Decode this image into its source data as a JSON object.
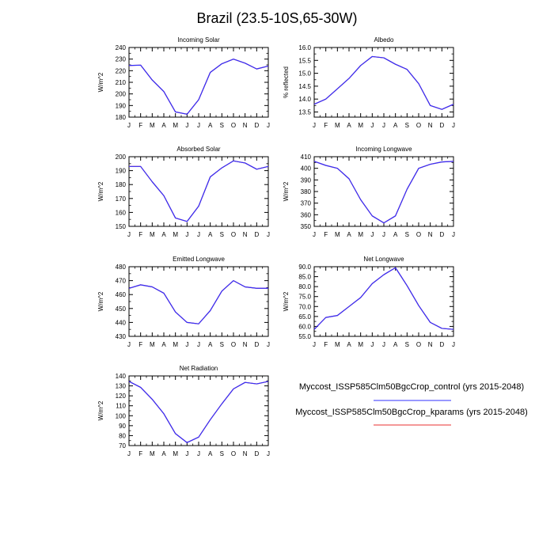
{
  "figure": {
    "title": "Brazil (23.5-10S,65-30W)"
  },
  "legend": {
    "entries": [
      {
        "name": "Myccost_ISSP585Clm50BgcCrop_control (yrs 2015-2048)",
        "color": "#3030ff"
      },
      {
        "name": "Myccost_ISSP585Clm50BgcCrop_kparams (yrs 2015-2048)",
        "color": "#e83030"
      }
    ]
  },
  "chart_data": [
    {
      "type": "line",
      "title": "Incoming Solar",
      "ylabel": "W/m^2",
      "categories": [
        "J",
        "F",
        "M",
        "A",
        "M",
        "J",
        "J",
        "A",
        "S",
        "O",
        "N",
        "D",
        "J"
      ],
      "ylim": [
        180,
        240
      ],
      "yticks": [
        180,
        190,
        200,
        210,
        220,
        230,
        240
      ],
      "ytick_labels": [
        "180",
        "190",
        "200",
        "210",
        "220",
        "230",
        "240"
      ],
      "series": [
        {
          "name": "control",
          "color": "#3030ff",
          "values": [
            224.5,
            224.8,
            212,
            202,
            184.5,
            182.5,
            195,
            218.5,
            226,
            230,
            226.5,
            221.5,
            224
          ]
        },
        {
          "name": "kparams",
          "color": "#e83030",
          "values": [
            224.5,
            224.8,
            212,
            202,
            184.5,
            182.5,
            195,
            218.5,
            226,
            230,
            226.5,
            221.5,
            224
          ]
        }
      ]
    },
    {
      "type": "line",
      "title": "Albedo",
      "ylabel": "% reflected",
      "categories": [
        "J",
        "F",
        "M",
        "A",
        "M",
        "J",
        "J",
        "A",
        "S",
        "O",
        "N",
        "D",
        "J"
      ],
      "ylim": [
        13.3,
        16.0
      ],
      "yticks": [
        13.5,
        14.0,
        14.5,
        15.0,
        15.5,
        16.0
      ],
      "ytick_labels": [
        "13.5",
        "14.0",
        "14.5",
        "15.0",
        "15.5",
        "16.0"
      ],
      "series": [
        {
          "name": "control",
          "color": "#3030ff",
          "values": [
            13.8,
            14.0,
            14.4,
            14.8,
            15.3,
            15.65,
            15.6,
            15.35,
            15.15,
            14.6,
            13.75,
            13.6,
            13.8
          ]
        },
        {
          "name": "kparams",
          "color": "#e83030",
          "values": [
            13.8,
            14.0,
            14.4,
            14.8,
            15.3,
            15.65,
            15.6,
            15.35,
            15.15,
            14.6,
            13.75,
            13.6,
            13.8
          ]
        }
      ]
    },
    {
      "type": "line",
      "title": "Absorbed Solar",
      "ylabel": "W/m^2",
      "categories": [
        "J",
        "F",
        "M",
        "A",
        "M",
        "J",
        "J",
        "A",
        "S",
        "O",
        "N",
        "D",
        "J"
      ],
      "ylim": [
        150,
        200
      ],
      "yticks": [
        150,
        160,
        170,
        180,
        190,
        200
      ],
      "ytick_labels": [
        "150",
        "160",
        "170",
        "180",
        "190",
        "200"
      ],
      "series": [
        {
          "name": "control",
          "color": "#3030ff",
          "values": [
            193,
            193,
            182,
            172,
            156,
            153.5,
            164.5,
            185.5,
            192,
            197,
            195.5,
            191,
            193
          ]
        },
        {
          "name": "kparams",
          "color": "#e83030",
          "values": [
            193,
            193,
            182,
            172,
            156,
            153.5,
            164.5,
            185.5,
            192,
            197,
            195.5,
            191,
            193
          ]
        }
      ]
    },
    {
      "type": "line",
      "title": "Incoming Longwave",
      "ylabel": "W/m^2",
      "categories": [
        "J",
        "F",
        "M",
        "A",
        "M",
        "J",
        "J",
        "A",
        "S",
        "O",
        "N",
        "D",
        "J"
      ],
      "ylim": [
        350,
        410
      ],
      "yticks": [
        350,
        360,
        370,
        380,
        390,
        400,
        410
      ],
      "ytick_labels": [
        "350",
        "360",
        "370",
        "380",
        "390",
        "400",
        "410"
      ],
      "series": [
        {
          "name": "control",
          "color": "#3030ff",
          "values": [
            406,
            402.5,
            400,
            391,
            373,
            359,
            353,
            359,
            382,
            400,
            403.5,
            405.5,
            406
          ]
        },
        {
          "name": "kparams",
          "color": "#e83030",
          "values": [
            406,
            402.5,
            400,
            391,
            373,
            359,
            353,
            359,
            382,
            400,
            403.5,
            405.5,
            406
          ]
        }
      ]
    },
    {
      "type": "line",
      "title": "Emitted Longwave",
      "ylabel": "W/m^2",
      "categories": [
        "J",
        "F",
        "M",
        "A",
        "M",
        "J",
        "J",
        "A",
        "S",
        "O",
        "N",
        "D",
        "J"
      ],
      "ylim": [
        430,
        480
      ],
      "yticks": [
        430,
        440,
        450,
        460,
        470,
        480
      ],
      "ytick_labels": [
        "430",
        "440",
        "450",
        "460",
        "470",
        "480"
      ],
      "series": [
        {
          "name": "control",
          "color": "#3030ff",
          "values": [
            464.5,
            467,
            465.5,
            461,
            447.5,
            440,
            439,
            448.5,
            462.5,
            470,
            465.5,
            464.5,
            464.5
          ]
        },
        {
          "name": "kparams",
          "color": "#e83030",
          "values": [
            464.5,
            467,
            465.5,
            461,
            447.5,
            440,
            439,
            448.5,
            462.5,
            470,
            465.5,
            464.5,
            464.5
          ]
        }
      ]
    },
    {
      "type": "line",
      "title": "Net Longwave",
      "ylabel": "W/m^2",
      "categories": [
        "J",
        "F",
        "M",
        "A",
        "M",
        "J",
        "J",
        "A",
        "S",
        "O",
        "N",
        "D",
        "J"
      ],
      "ylim": [
        55,
        90
      ],
      "yticks": [
        55,
        60,
        65,
        70,
        75,
        80,
        85,
        90
      ],
      "ytick_labels": [
        "55.0",
        "60.0",
        "65.0",
        "70.0",
        "75.0",
        "80.0",
        "85.0",
        "90.0"
      ],
      "series": [
        {
          "name": "control",
          "color": "#3030ff",
          "values": [
            58.5,
            64.5,
            65.5,
            70,
            74.5,
            81.5,
            86,
            89.5,
            80.5,
            70.5,
            62,
            59,
            58.5
          ]
        },
        {
          "name": "kparams",
          "color": "#e83030",
          "values": [
            58.5,
            64.5,
            65.5,
            70,
            74.5,
            81.5,
            86,
            89.5,
            80.5,
            70.5,
            62,
            59,
            58.5
          ]
        }
      ]
    },
    {
      "type": "line",
      "title": "Net Radiation",
      "ylabel": "W/m^2",
      "categories": [
        "J",
        "F",
        "M",
        "A",
        "M",
        "J",
        "J",
        "A",
        "S",
        "O",
        "N",
        "D",
        "J"
      ],
      "ylim": [
        70,
        140
      ],
      "yticks": [
        70,
        80,
        90,
        100,
        110,
        120,
        130,
        140
      ],
      "ytick_labels": [
        "70",
        "80",
        "90",
        "100",
        "110",
        "120",
        "130",
        "140"
      ],
      "series": [
        {
          "name": "control",
          "color": "#3030ff",
          "values": [
            134.5,
            128.5,
            116.5,
            102,
            82,
            73,
            78.5,
            96,
            112,
            127,
            133.5,
            132,
            134.5
          ]
        },
        {
          "name": "kparams",
          "color": "#e83030",
          "values": [
            134.5,
            128.5,
            116.5,
            102,
            82,
            73,
            78.5,
            96,
            112,
            127,
            133.5,
            132,
            134.5
          ]
        }
      ]
    }
  ]
}
